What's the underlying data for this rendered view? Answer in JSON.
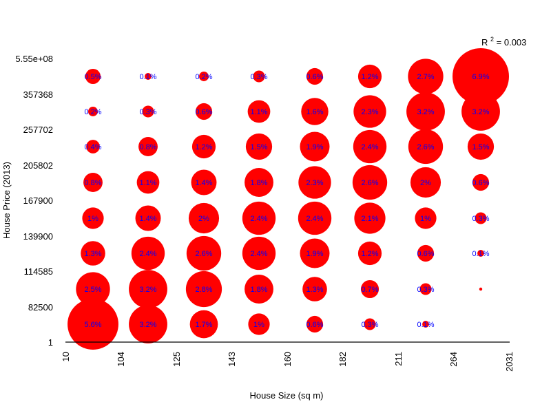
{
  "chart_data": {
    "type": "scatter",
    "title": "",
    "xlabel": "House Size (sq m)",
    "ylabel": "House Price (2013)",
    "x_ticks": [
      "10",
      "104",
      "125",
      "143",
      "160",
      "182",
      "211",
      "264",
      "2031"
    ],
    "y_ticks": [
      "1",
      "82500",
      "114585",
      "139900",
      "167900",
      "205802",
      "257702",
      "357368",
      "5.55e+08"
    ],
    "annotation": {
      "prefix": "R",
      "superscript": "2",
      "text": " = 0.003"
    },
    "colors": {
      "bubble": "#ff0000",
      "label": "#0000ff",
      "axis": "#000000"
    },
    "grid": false,
    "legend": "none",
    "cells": [
      {
        "col": 0,
        "row": 0,
        "value": 5.6,
        "label": "5.6%"
      },
      {
        "col": 1,
        "row": 0,
        "value": 3.2,
        "label": "3.2%"
      },
      {
        "col": 2,
        "row": 0,
        "value": 1.7,
        "label": "1.7%"
      },
      {
        "col": 3,
        "row": 0,
        "value": 1.0,
        "label": "1%"
      },
      {
        "col": 4,
        "row": 0,
        "value": 0.6,
        "label": "0.6%"
      },
      {
        "col": 5,
        "row": 0,
        "value": 0.3,
        "label": "0.3%"
      },
      {
        "col": 6,
        "row": 0,
        "value": 0.1,
        "label": "0.1%"
      },
      {
        "col": 0,
        "row": 1,
        "value": 2.5,
        "label": "2.5%"
      },
      {
        "col": 1,
        "row": 1,
        "value": 3.2,
        "label": "3.2%"
      },
      {
        "col": 2,
        "row": 1,
        "value": 2.8,
        "label": "2.8%"
      },
      {
        "col": 3,
        "row": 1,
        "value": 1.8,
        "label": "1.8%"
      },
      {
        "col": 4,
        "row": 1,
        "value": 1.3,
        "label": "1.3%"
      },
      {
        "col": 5,
        "row": 1,
        "value": 0.7,
        "label": "0.7%"
      },
      {
        "col": 6,
        "row": 1,
        "value": 0.3,
        "label": "0.3%"
      },
      {
        "col": 7,
        "row": 1,
        "value": 0.02,
        "label": ""
      },
      {
        "col": 0,
        "row": 2,
        "value": 1.3,
        "label": "1.3%"
      },
      {
        "col": 1,
        "row": 2,
        "value": 2.4,
        "label": "2.4%"
      },
      {
        "col": 2,
        "row": 2,
        "value": 2.6,
        "label": "2.6%"
      },
      {
        "col": 3,
        "row": 2,
        "value": 2.4,
        "label": "2.4%"
      },
      {
        "col": 4,
        "row": 2,
        "value": 1.9,
        "label": "1.9%"
      },
      {
        "col": 5,
        "row": 2,
        "value": 1.2,
        "label": "1.2%"
      },
      {
        "col": 6,
        "row": 2,
        "value": 0.6,
        "label": "0.6%"
      },
      {
        "col": 7,
        "row": 2,
        "value": 0.1,
        "label": "0.1%"
      },
      {
        "col": 0,
        "row": 3,
        "value": 1.0,
        "label": "1%"
      },
      {
        "col": 1,
        "row": 3,
        "value": 1.4,
        "label": "1.4%"
      },
      {
        "col": 2,
        "row": 3,
        "value": 2.0,
        "label": "2%"
      },
      {
        "col": 3,
        "row": 3,
        "value": 2.4,
        "label": "2.4%"
      },
      {
        "col": 4,
        "row": 3,
        "value": 2.4,
        "label": "2.4%"
      },
      {
        "col": 5,
        "row": 3,
        "value": 2.1,
        "label": "2.1%"
      },
      {
        "col": 6,
        "row": 3,
        "value": 1.0,
        "label": "1%"
      },
      {
        "col": 7,
        "row": 3,
        "value": 0.3,
        "label": "0.3%"
      },
      {
        "col": 0,
        "row": 4,
        "value": 0.8,
        "label": "0.8%"
      },
      {
        "col": 1,
        "row": 4,
        "value": 1.1,
        "label": "1.1%"
      },
      {
        "col": 2,
        "row": 4,
        "value": 1.4,
        "label": "1.4%"
      },
      {
        "col": 3,
        "row": 4,
        "value": 1.8,
        "label": "1.8%"
      },
      {
        "col": 4,
        "row": 4,
        "value": 2.3,
        "label": "2.3%"
      },
      {
        "col": 5,
        "row": 4,
        "value": 2.6,
        "label": "2.6%"
      },
      {
        "col": 6,
        "row": 4,
        "value": 2.0,
        "label": "2%"
      },
      {
        "col": 7,
        "row": 4,
        "value": 0.6,
        "label": "0.6%"
      },
      {
        "col": 0,
        "row": 5,
        "value": 0.4,
        "label": "0.4%"
      },
      {
        "col": 1,
        "row": 5,
        "value": 0.8,
        "label": "0.8%"
      },
      {
        "col": 2,
        "row": 5,
        "value": 1.2,
        "label": "1.2%"
      },
      {
        "col": 3,
        "row": 5,
        "value": 1.5,
        "label": "1.5%"
      },
      {
        "col": 4,
        "row": 5,
        "value": 1.9,
        "label": "1.9%"
      },
      {
        "col": 5,
        "row": 5,
        "value": 2.4,
        "label": "2.4%"
      },
      {
        "col": 6,
        "row": 5,
        "value": 2.6,
        "label": "2.6%"
      },
      {
        "col": 7,
        "row": 5,
        "value": 1.5,
        "label": "1.5%"
      },
      {
        "col": 0,
        "row": 6,
        "value": 0.2,
        "label": "0.2%"
      },
      {
        "col": 1,
        "row": 6,
        "value": 0.3,
        "label": "0.3%"
      },
      {
        "col": 2,
        "row": 6,
        "value": 0.6,
        "label": "0.6%"
      },
      {
        "col": 3,
        "row": 6,
        "value": 1.1,
        "label": "1.1%"
      },
      {
        "col": 4,
        "row": 6,
        "value": 1.6,
        "label": "1.6%"
      },
      {
        "col": 5,
        "row": 6,
        "value": 2.3,
        "label": "2.3%"
      },
      {
        "col": 6,
        "row": 6,
        "value": 3.2,
        "label": "3.2%"
      },
      {
        "col": 7,
        "row": 6,
        "value": 3.2,
        "label": "3.2%"
      },
      {
        "col": 0,
        "row": 7,
        "value": 0.5,
        "label": "0.5%"
      },
      {
        "col": 1,
        "row": 7,
        "value": 0.1,
        "label": "0.1%"
      },
      {
        "col": 2,
        "row": 7,
        "value": 0.2,
        "label": "0.2%"
      },
      {
        "col": 3,
        "row": 7,
        "value": 0.3,
        "label": "0.3%"
      },
      {
        "col": 4,
        "row": 7,
        "value": 0.6,
        "label": "0.6%"
      },
      {
        "col": 5,
        "row": 7,
        "value": 1.2,
        "label": "1.2%"
      },
      {
        "col": 6,
        "row": 7,
        "value": 2.7,
        "label": "2.7%"
      },
      {
        "col": 7,
        "row": 7,
        "value": 6.9,
        "label": "6.9%"
      }
    ]
  }
}
